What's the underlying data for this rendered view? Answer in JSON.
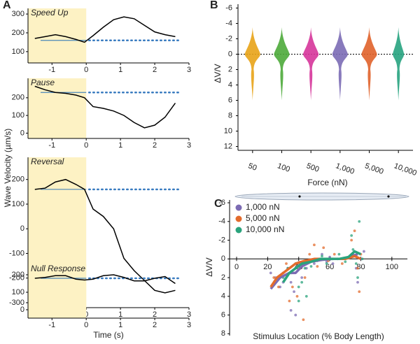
{
  "chart_data": [
    {
      "type": "line",
      "panel_label": "A",
      "title": "Speed Up",
      "ylabel": "Wave Velocity (µm/s)",
      "x": [
        -1.5,
        -1.2,
        -0.9,
        -0.6,
        -0.3,
        -0.05,
        0.2,
        0.5,
        0.8,
        1.1,
        1.4,
        1.7,
        2.0,
        2.3,
        2.6
      ],
      "series": [
        {
          "color": "#000000",
          "values": [
            170,
            180,
            190,
            180,
            165,
            150,
            185,
            230,
            270,
            285,
            275,
            240,
            205,
            190,
            180
          ]
        }
      ],
      "baseline": 160,
      "shade_until": 0,
      "xlim": [
        -1.7,
        3
      ],
      "xticks": [
        -1,
        0,
        1,
        2,
        3
      ],
      "ylim": [
        40,
        330
      ],
      "yticks": [
        100,
        200,
        300
      ]
    },
    {
      "type": "line",
      "title": "Pause",
      "x": [
        -1.5,
        -1.2,
        -0.9,
        -0.6,
        -0.3,
        -0.05,
        0.2,
        0.5,
        0.8,
        1.1,
        1.4,
        1.7,
        2.0,
        2.3,
        2.6
      ],
      "series": [
        {
          "color": "#000000",
          "values": [
            265,
            245,
            230,
            225,
            215,
            200,
            150,
            140,
            125,
            100,
            60,
            30,
            45,
            90,
            170
          ]
        }
      ],
      "baseline": 230,
      "shade_until": 0,
      "xlim": [
        -1.7,
        3
      ],
      "xticks": [
        -1,
        0,
        1,
        2,
        3
      ],
      "ylim": [
        -30,
        310
      ],
      "yticks": [
        0,
        100,
        200
      ]
    },
    {
      "type": "line",
      "title": "Reversal",
      "x": [
        -1.5,
        -1.2,
        -0.9,
        -0.6,
        -0.3,
        -0.05,
        0.2,
        0.5,
        0.8,
        1.1,
        1.4,
        1.7,
        2.0,
        2.3,
        2.6
      ],
      "series": [
        {
          "color": "#000000",
          "values": [
            160,
            165,
            190,
            200,
            180,
            160,
            80,
            50,
            0,
            -120,
            -170,
            -210,
            -250,
            -260,
            -250
          ]
        }
      ],
      "baseline": 160,
      "shade_until": 0,
      "xlim": [
        -1.7,
        3
      ],
      "xticks": [
        -1,
        0,
        1,
        2,
        3
      ],
      "ylim": [
        -320,
        290
      ],
      "yticks": [
        -300,
        -200,
        -100,
        0,
        100,
        200
      ]
    },
    {
      "type": "line",
      "title": "Null Response",
      "xlabel": "Time (s)",
      "x": [
        -1.5,
        -1.2,
        -0.9,
        -0.6,
        -0.3,
        -0.05,
        0.2,
        0.5,
        0.8,
        1.1,
        1.4,
        1.7,
        2.0,
        2.3,
        2.6
      ],
      "series": [
        {
          "color": "#000000",
          "values": [
            180,
            185,
            195,
            195,
            175,
            170,
            175,
            195,
            200,
            185,
            165,
            165,
            180,
            190,
            150
          ]
        }
      ],
      "baseline": 180,
      "shade_until": 0,
      "xlim": [
        -1.7,
        3
      ],
      "xticks": [
        -1,
        0,
        1,
        2,
        3
      ],
      "ylim": [
        -48,
        260
      ],
      "yticks": [
        0,
        100,
        200
      ]
    },
    {
      "type": "violin",
      "panel_label": "B",
      "ylabel": "ΔV/V",
      "xlabel": "Force (nN)",
      "categories": [
        "50",
        "100",
        "500",
        "1,000",
        "5,000",
        "10,000"
      ],
      "colors": [
        "#e8a317",
        "#4daa3a",
        "#d6359a",
        "#7b6bb5",
        "#e0622a",
        "#27a37f"
      ],
      "ylim": [
        -6.5,
        12.5
      ],
      "y_inverted": true,
      "yticks": [
        -6,
        -4,
        -2,
        0,
        2,
        4,
        6,
        8,
        10,
        12
      ],
      "reference_line": 0
    },
    {
      "type": "scatter",
      "panel_label": "C",
      "ylabel": "ΔV/V",
      "xlabel": "Stimulus Location (% Body Length)",
      "xlim": [
        0,
        110
      ],
      "xticks": [
        0,
        20,
        40,
        60,
        80,
        100
      ],
      "ylim": [
        -6.3,
        8.2
      ],
      "y_inverted": true,
      "yticks": [
        -6,
        -4,
        -2,
        0,
        2,
        4,
        6,
        8
      ],
      "series": [
        {
          "name": "1,000 nN",
          "color": "#7c6bb3",
          "x": [
            22,
            25,
            28,
            30,
            33,
            35,
            37,
            38,
            40,
            42,
            45,
            50,
            55,
            58,
            60,
            62,
            65,
            75,
            77,
            78,
            80,
            82,
            35,
            38
          ],
          "values": [
            1.5,
            2,
            3,
            2.5,
            1,
            2.5,
            3.5,
            1,
            0.5,
            2,
            1,
            0.5,
            -0.5,
            0.3,
            -0.2,
            0.5,
            0,
            -0.5,
            1,
            2.5,
            0,
            -0.8,
            5.5,
            6
          ],
          "trend_x": [
            22,
            28,
            34,
            38,
            42,
            48,
            55,
            62,
            68,
            74,
            78
          ],
          "trend": [
            3.2,
            2,
            1.5,
            1.5,
            0.8,
            0.3,
            0.1,
            0,
            0,
            -0.3,
            -0.5
          ]
        },
        {
          "name": "5,000 nN",
          "color": "#e36b2c",
          "x": [
            24,
            27,
            30,
            32,
            36,
            39,
            41,
            44,
            47,
            52,
            56,
            59,
            63,
            68,
            74,
            76,
            78,
            79,
            80,
            43,
            34,
            50
          ],
          "values": [
            2,
            3,
            1.5,
            0.5,
            3,
            4,
            1,
            2,
            -0.5,
            0.8,
            -1.2,
            0.2,
            -0.5,
            0.5,
            -2,
            -3,
            1,
            3.5,
            -0.5,
            6.5,
            4.5,
            -1.5
          ],
          "trend_x": [
            22,
            26,
            30,
            34,
            38,
            44,
            50,
            56,
            62,
            70,
            76,
            80
          ],
          "trend": [
            3,
            2,
            1.5,
            1,
            0.5,
            0.2,
            0,
            0,
            0,
            0,
            -0.3,
            0
          ]
        },
        {
          "name": "10,000 nN",
          "color": "#2aa37c",
          "x": [
            30,
            33,
            35,
            38,
            40,
            42,
            44,
            48,
            52,
            55,
            58,
            62,
            66,
            70,
            74,
            75,
            77,
            78,
            79,
            81,
            40,
            45
          ],
          "values": [
            2,
            1,
            1.5,
            0.5,
            3,
            2.5,
            1,
            0.8,
            0.2,
            -0.3,
            0.5,
            0,
            -0.5,
            0.3,
            -2.5,
            -1,
            0.5,
            2,
            -4,
            0,
            4.5,
            4
          ],
          "trend_x": [
            30,
            34,
            38,
            42,
            48,
            54,
            60,
            66,
            72,
            76,
            80
          ],
          "trend": [
            2.5,
            1.5,
            1,
            0.5,
            0.3,
            0,
            0,
            0,
            -0.2,
            -0.8,
            -0.5
          ]
        }
      ]
    }
  ]
}
